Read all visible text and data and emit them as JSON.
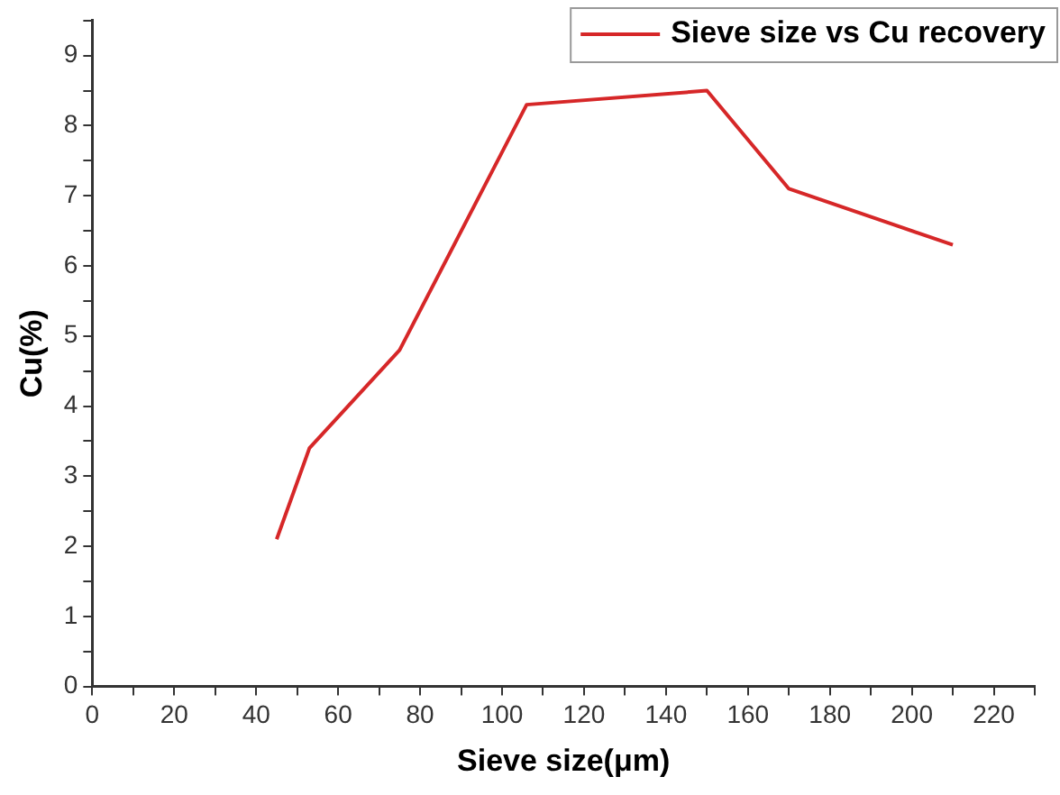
{
  "chart_data": {
    "type": "line",
    "xlabel": "Sieve size(μm)",
    "ylabel": "Cu(%)",
    "x": [
      45,
      53,
      75,
      106,
      150,
      170,
      210
    ],
    "series": [
      {
        "name": "Sieve size vs Cu recovery",
        "color": "#d62728",
        "values": [
          2.1,
          3.4,
          4.8,
          8.3,
          8.5,
          7.1,
          6.3
        ]
      }
    ],
    "xlim": [
      0,
      230
    ],
    "xticks": [
      0,
      {
        "value": 10,
        "label": null
      },
      20,
      {
        "value": 30,
        "label": null
      },
      40,
      {
        "value": 50,
        "label": null
      },
      60,
      {
        "value": 70,
        "label": null
      },
      80,
      {
        "value": 90,
        "label": null
      },
      100,
      {
        "value": 110,
        "label": null
      },
      120,
      {
        "value": 130,
        "label": null
      },
      140,
      {
        "value": 150,
        "label": null
      },
      160,
      {
        "value": 170,
        "label": null
      },
      180,
      {
        "value": 190,
        "label": null
      },
      200,
      {
        "value": 210,
        "label": null
      },
      220,
      {
        "value": 230,
        "label": null
      }
    ],
    "ylim": [
      0,
      9.5
    ],
    "yticks": [
      0,
      {
        "value": 0.5,
        "label": null
      },
      1,
      {
        "value": 1.5,
        "label": null
      },
      2,
      {
        "value": 2.5,
        "label": null
      },
      3,
      {
        "value": 3.5,
        "label": null
      },
      4,
      {
        "value": 4.5,
        "label": null
      },
      5,
      {
        "value": 5.5,
        "label": null
      },
      6,
      {
        "value": 6.5,
        "label": null
      },
      7,
      {
        "value": 7.5,
        "label": null
      },
      8,
      {
        "value": 8.5,
        "label": null
      },
      9,
      {
        "value": 9.5,
        "label": null
      }
    ],
    "grid": false,
    "legend": "top right",
    "marker": "none",
    "line_style": "solid"
  }
}
